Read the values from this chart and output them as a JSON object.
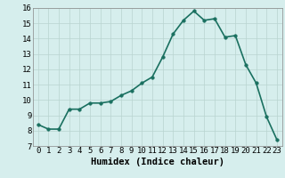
{
  "x": [
    0,
    1,
    2,
    3,
    4,
    5,
    6,
    7,
    8,
    9,
    10,
    11,
    12,
    13,
    14,
    15,
    16,
    17,
    18,
    19,
    20,
    21,
    22,
    23
  ],
  "y": [
    8.4,
    8.1,
    8.1,
    9.4,
    9.4,
    9.8,
    9.8,
    9.9,
    10.3,
    10.6,
    11.1,
    11.5,
    12.8,
    14.3,
    15.2,
    15.8,
    15.2,
    15.3,
    14.1,
    14.2,
    12.3,
    11.1,
    8.9,
    7.4
  ],
  "xlabel": "Humidex (Indice chaleur)",
  "ylim": [
    7,
    16
  ],
  "xlim": [
    -0.5,
    23.5
  ],
  "yticks": [
    7,
    8,
    9,
    10,
    11,
    12,
    13,
    14,
    15,
    16
  ],
  "xticks": [
    0,
    1,
    2,
    3,
    4,
    5,
    6,
    7,
    8,
    9,
    10,
    11,
    12,
    13,
    14,
    15,
    16,
    17,
    18,
    19,
    20,
    21,
    22,
    23
  ],
  "line_color": "#1a7060",
  "marker_color": "#1a7060",
  "axes_bg": "#d6eeed",
  "fig_bg": "#d6eeed",
  "grid_color": "#b8d4d0",
  "xlabel_fontsize": 7.5,
  "tick_fontsize": 6.5,
  "linewidth": 1.2,
  "markersize": 2.5
}
